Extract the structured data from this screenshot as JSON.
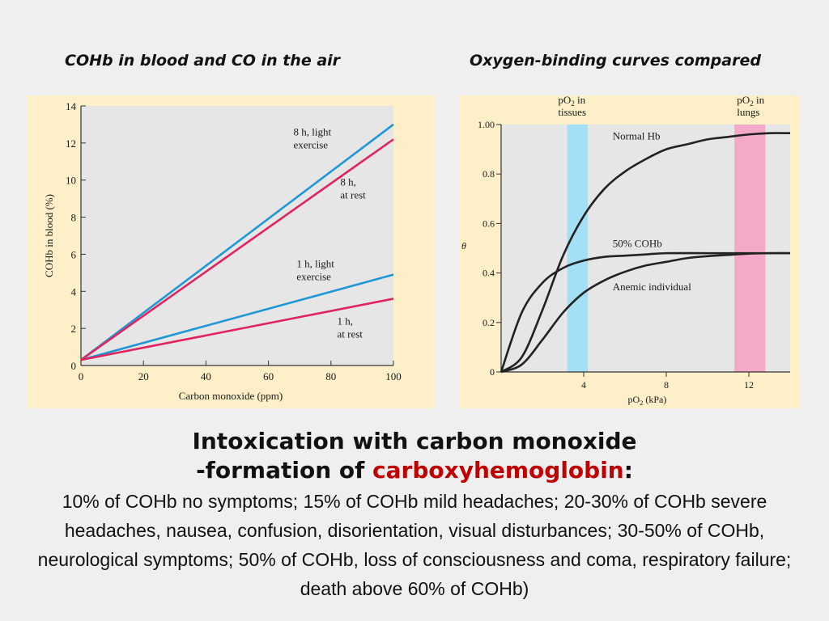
{
  "headings": {
    "left": "COHb in blood and CO in the air",
    "right": "Oxygen-binding curves compared"
  },
  "title": {
    "line1": "Intoxication with carbon monoxide",
    "line2_prefix": "-formation of ",
    "line2_highlight": "carboxyhemoglobin",
    "line2_suffix": ":"
  },
  "body_text": "10% of COHb no symptoms; 15% of COHb mild headaches; 20-30% of COHb severe headaches, nausea, confusion, disorientation, visual disturbances; 30-50% of COHb, neurological symptoms; 50% of COHb, loss of consciousness and coma, respiratory failure; death above 60% of COHb)",
  "colors": {
    "panel_bg": "#fdefc7",
    "plot_bg": "#e6e6e6",
    "light_exercise": "#1f97d6",
    "at_rest": "#e0245e",
    "tissues_band": "#a3dff5",
    "lungs_band": "#f4a9c9",
    "highlight_text": "#c00000"
  },
  "chart_data": [
    {
      "type": "line",
      "title": "",
      "xlabel": "Carbon monoxide (ppm)",
      "ylabel": "COHb in blood (%)",
      "xlim": [
        0,
        100
      ],
      "ylim": [
        0,
        14
      ],
      "xticks": [
        0,
        20,
        40,
        60,
        80,
        100
      ],
      "yticks": [
        0,
        2,
        4,
        6,
        8,
        10,
        12,
        14
      ],
      "grid": false,
      "series": [
        {
          "name": "8 h, light exercise",
          "color": "#1f97d6",
          "x": [
            0,
            100
          ],
          "y": [
            0.3,
            13.0
          ],
          "label_lines": [
            "8 h, light",
            "exercise"
          ]
        },
        {
          "name": "8 h, at rest",
          "color": "#e0245e",
          "x": [
            0,
            100
          ],
          "y": [
            0.3,
            12.2
          ],
          "label_lines": [
            "8 h,",
            "at rest"
          ]
        },
        {
          "name": "1 h, light exercise",
          "color": "#1f97d6",
          "x": [
            0,
            100
          ],
          "y": [
            0.3,
            4.9
          ],
          "label_lines": [
            "1 h, light",
            "exercise"
          ]
        },
        {
          "name": "1 h, at rest",
          "color": "#e0245e",
          "x": [
            0,
            100
          ],
          "y": [
            0.3,
            3.6
          ],
          "label_lines": [
            "1 h,",
            "at rest"
          ]
        }
      ]
    },
    {
      "type": "line",
      "title": "",
      "xlabel": "pO2 (kPa)",
      "ylabel": "θ",
      "xlim": [
        0,
        14
      ],
      "ylim": [
        0,
        1.0
      ],
      "xticks": [
        4,
        8,
        12
      ],
      "yticks": [
        0,
        0.2,
        0.4,
        0.6,
        0.8,
        1.0
      ],
      "ytick_labels": [
        "0",
        "0.2",
        "0.4",
        "0.6",
        "0.8",
        "1.00"
      ],
      "grid": false,
      "bands": [
        {
          "name": "pO2 in tissues",
          "label_lines": [
            "pO2 in",
            "tissues"
          ],
          "from": 3.2,
          "to": 4.2,
          "color": "#a3dff5"
        },
        {
          "name": "pO2 in lungs",
          "label_lines": [
            "pO2 in",
            "lungs"
          ],
          "from": 11.3,
          "to": 12.8,
          "color": "#f4a9c9"
        }
      ],
      "series": [
        {
          "name": "Normal Hb",
          "color": "#222222",
          "x": [
            0,
            1,
            2,
            3,
            4,
            5,
            6,
            7,
            8,
            9,
            10,
            11,
            12,
            13,
            14
          ],
          "y": [
            0,
            0.06,
            0.25,
            0.47,
            0.63,
            0.74,
            0.81,
            0.86,
            0.9,
            0.92,
            0.94,
            0.95,
            0.96,
            0.965,
            0.965
          ]
        },
        {
          "name": "50% COHb",
          "color": "#222222",
          "x": [
            0,
            1,
            2,
            3,
            4,
            5,
            6,
            7,
            8,
            10,
            12,
            14
          ],
          "y": [
            0,
            0.24,
            0.36,
            0.42,
            0.45,
            0.465,
            0.47,
            0.475,
            0.48,
            0.48,
            0.48,
            0.48
          ]
        },
        {
          "name": "Anemic individual",
          "color": "#222222",
          "x": [
            0,
            1,
            2,
            3,
            4,
            5,
            6,
            7,
            8,
            9,
            10,
            11,
            12,
            13,
            14
          ],
          "y": [
            0,
            0.03,
            0.13,
            0.24,
            0.32,
            0.37,
            0.405,
            0.43,
            0.445,
            0.46,
            0.468,
            0.473,
            0.478,
            0.48,
            0.48
          ]
        }
      ]
    }
  ]
}
